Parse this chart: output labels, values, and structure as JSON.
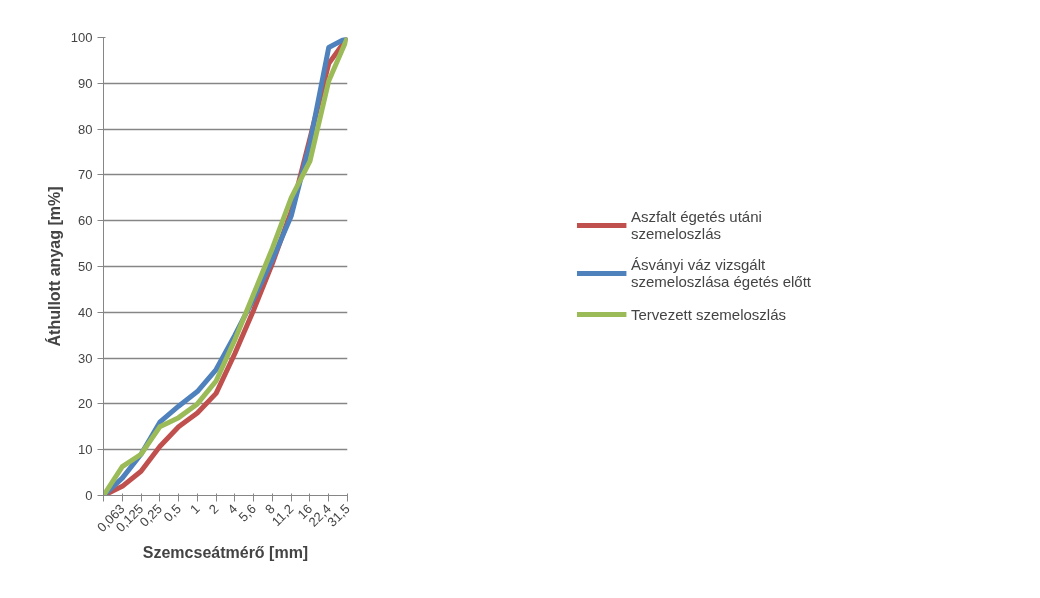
{
  "chart_data": {
    "type": "line",
    "xlabel": "Szemcseátmérő [mm]",
    "ylabel": "Áthullott anyag [m%]",
    "categories": [
      null,
      "0,063",
      "0,125",
      "0,25",
      "0,5",
      "1",
      "2",
      "4",
      "5,6",
      "8",
      "11,2",
      "16",
      "22,4",
      "31,5"
    ],
    "series": [
      {
        "name": "Aszfalt égetés utáni szemeloszlás",
        "color": "#c0504d",
        "values": [
          0,
          2,
          5.3,
          10.7,
          15,
          18,
          22.3,
          31,
          40.5,
          50.7,
          62,
          78,
          94.3,
          100
        ]
      },
      {
        "name": "Ásványi váz vizsgált szemeloszlása égetés előtt",
        "color": "#4f81bd",
        "values": [
          0,
          3.8,
          9,
          16,
          19.5,
          22.7,
          27.5,
          35,
          43,
          51.5,
          61,
          77,
          97.8,
          100
        ]
      },
      {
        "name": "Tervezett szemeloszlás",
        "color": "#9bbb59",
        "values": [
          0,
          6.3,
          9,
          15,
          17,
          20,
          25,
          34,
          44,
          54,
          65,
          73,
          90.5,
          100
        ]
      }
    ],
    "ylim": [
      0,
      100
    ],
    "yticks": [
      0,
      10,
      20,
      30,
      40,
      50,
      60,
      70,
      80,
      90,
      100
    ],
    "grid": "y",
    "legend": "right"
  }
}
